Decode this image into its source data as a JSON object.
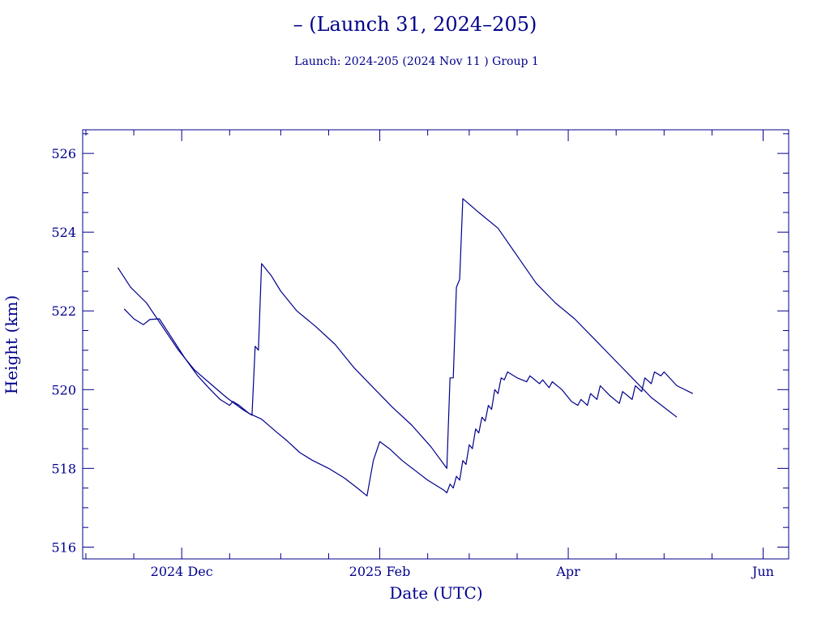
{
  "chart_data": {
    "type": "line",
    "title": "– (Launch 31, 2024–205)",
    "subtitle": "Launch: 2024-205  (2024 Nov 11 )  Group 1",
    "xlabel": "Date (UTC)",
    "ylabel": "Height (km)",
    "x_axis": {
      "type": "date",
      "range": [
        "2024-10-31",
        "2025-06-09"
      ],
      "ticks": [
        {
          "date": "2024-12-01",
          "label": "2024 Dec"
        },
        {
          "date": "2025-02-01",
          "label": "2025 Feb"
        },
        {
          "date": "2025-04-01",
          "label": "Apr"
        },
        {
          "date": "2025-06-01",
          "label": "Jun"
        }
      ]
    },
    "y_axis": {
      "range": [
        515.7,
        526.6
      ],
      "ticks": [
        516,
        518,
        520,
        522,
        524,
        526
      ]
    },
    "grid": false,
    "color": "#00008b",
    "series": [
      {
        "points": [
          [
            "2024-11-11",
            523.1
          ],
          [
            "2024-11-15",
            522.6
          ],
          [
            "2024-11-20",
            522.2
          ],
          [
            "2024-11-25",
            521.6
          ],
          [
            "2024-11-30",
            521.0
          ],
          [
            "2024-12-05",
            520.5
          ],
          [
            "2024-12-10",
            520.15
          ],
          [
            "2024-12-15",
            519.8
          ],
          [
            "2024-12-20",
            519.5
          ],
          [
            "2024-12-23",
            519.35
          ],
          [
            "2024-12-24",
            521.1
          ],
          [
            "2024-12-25",
            521.0
          ],
          [
            "2024-12-26",
            523.2
          ],
          [
            "2024-12-29",
            522.9
          ],
          [
            "2025-01-01",
            522.5
          ],
          [
            "2025-01-06",
            522.0
          ],
          [
            "2025-01-12",
            521.6
          ],
          [
            "2025-01-18",
            521.15
          ],
          [
            "2025-01-24",
            520.55
          ],
          [
            "2025-01-30",
            520.05
          ],
          [
            "2025-02-05",
            519.55
          ],
          [
            "2025-02-11",
            519.1
          ],
          [
            "2025-02-17",
            518.55
          ],
          [
            "2025-02-22",
            518.0
          ],
          [
            "2025-02-23",
            520.3
          ],
          [
            "2025-02-24",
            520.3
          ],
          [
            "2025-02-25",
            522.6
          ],
          [
            "2025-02-26",
            522.8
          ],
          [
            "2025-02-27",
            524.85
          ],
          [
            "2025-03-04",
            524.5
          ],
          [
            "2025-03-10",
            524.1
          ],
          [
            "2025-03-16",
            523.4
          ],
          [
            "2025-03-22",
            522.7
          ],
          [
            "2025-03-28",
            522.2
          ],
          [
            "2025-04-03",
            521.8
          ],
          [
            "2025-04-09",
            521.3
          ],
          [
            "2025-04-15",
            520.8
          ],
          [
            "2025-04-21",
            520.3
          ],
          [
            "2025-04-27",
            519.8
          ],
          [
            "2025-05-05",
            519.3
          ]
        ]
      },
      {
        "points": [
          [
            "2024-11-13",
            522.05
          ],
          [
            "2024-11-16",
            521.8
          ],
          [
            "2024-11-19",
            521.65
          ],
          [
            "2024-11-21",
            521.78
          ],
          [
            "2024-11-24",
            521.8
          ],
          [
            "2024-11-28",
            521.3
          ],
          [
            "2024-12-02",
            520.8
          ],
          [
            "2024-12-06",
            520.35
          ],
          [
            "2024-12-10",
            520.0
          ],
          [
            "2024-12-13",
            519.75
          ],
          [
            "2024-12-16",
            519.6
          ],
          [
            "2024-12-17",
            519.7
          ],
          [
            "2024-12-19",
            519.6
          ],
          [
            "2024-12-22",
            519.4
          ],
          [
            "2024-12-26",
            519.25
          ],
          [
            "2024-12-31",
            518.9
          ],
          [
            "2025-01-03",
            518.7
          ],
          [
            "2025-01-07",
            518.4
          ],
          [
            "2025-01-11",
            518.2
          ],
          [
            "2025-01-16",
            518.0
          ],
          [
            "2025-01-21",
            517.75
          ],
          [
            "2025-01-25",
            517.5
          ],
          [
            "2025-01-28",
            517.3
          ],
          [
            "2025-01-30",
            518.2
          ],
          [
            "2025-02-01",
            518.68
          ],
          [
            "2025-02-04",
            518.5
          ],
          [
            "2025-02-08",
            518.2
          ],
          [
            "2025-02-12",
            517.95
          ],
          [
            "2025-02-16",
            517.7
          ],
          [
            "2025-02-20",
            517.5
          ],
          [
            "2025-02-21",
            517.45
          ],
          [
            "2025-02-22",
            517.38
          ],
          [
            "2025-02-23",
            517.6
          ],
          [
            "2025-02-24",
            517.5
          ],
          [
            "2025-02-25",
            517.8
          ],
          [
            "2025-02-26",
            517.7
          ],
          [
            "2025-02-27",
            518.2
          ],
          [
            "2025-02-28",
            518.1
          ],
          [
            "2025-03-01",
            518.6
          ],
          [
            "2025-03-02",
            518.5
          ],
          [
            "2025-03-03",
            519.0
          ],
          [
            "2025-03-04",
            518.9
          ],
          [
            "2025-03-05",
            519.3
          ],
          [
            "2025-03-06",
            519.2
          ],
          [
            "2025-03-07",
            519.6
          ],
          [
            "2025-03-08",
            519.5
          ],
          [
            "2025-03-09",
            520.0
          ],
          [
            "2025-03-10",
            519.9
          ],
          [
            "2025-03-11",
            520.3
          ],
          [
            "2025-03-12",
            520.25
          ],
          [
            "2025-03-13",
            520.45
          ],
          [
            "2025-03-16",
            520.3
          ],
          [
            "2025-03-19",
            520.2
          ],
          [
            "2025-03-20",
            520.35
          ],
          [
            "2025-03-23",
            520.15
          ],
          [
            "2025-03-24",
            520.25
          ],
          [
            "2025-03-26",
            520.05
          ],
          [
            "2025-03-27",
            520.2
          ],
          [
            "2025-03-30",
            520.0
          ],
          [
            "2025-04-02",
            519.7
          ],
          [
            "2025-04-04",
            519.6
          ],
          [
            "2025-04-05",
            519.75
          ],
          [
            "2025-04-07",
            519.6
          ],
          [
            "2025-04-08",
            519.9
          ],
          [
            "2025-04-10",
            519.75
          ],
          [
            "2025-04-11",
            520.1
          ],
          [
            "2025-04-14",
            519.85
          ],
          [
            "2025-04-17",
            519.65
          ],
          [
            "2025-04-18",
            519.95
          ],
          [
            "2025-04-21",
            519.75
          ],
          [
            "2025-04-22",
            520.1
          ],
          [
            "2025-04-24",
            519.95
          ],
          [
            "2025-04-25",
            520.3
          ],
          [
            "2025-04-27",
            520.15
          ],
          [
            "2025-04-28",
            520.45
          ],
          [
            "2025-04-30",
            520.35
          ],
          [
            "2025-05-01",
            520.45
          ],
          [
            "2025-05-05",
            520.1
          ],
          [
            "2025-05-10",
            519.9
          ]
        ]
      }
    ]
  }
}
